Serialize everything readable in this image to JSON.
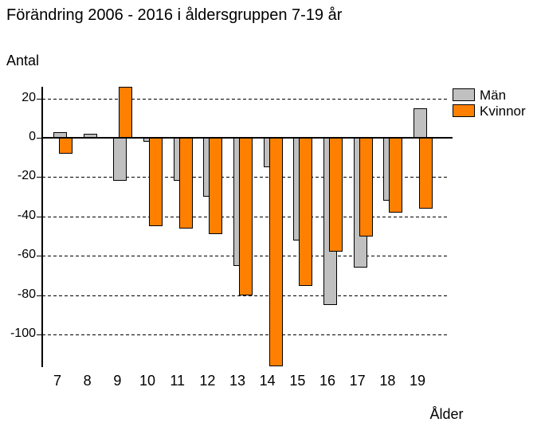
{
  "chart_data": {
    "type": "bar",
    "title": "Förändring 2006 - 2016 i åldersgruppen 7-19 år",
    "xlabel": "Ålder",
    "ylabel": "Antal",
    "categories": [
      "7",
      "8",
      "9",
      "10",
      "11",
      "12",
      "13",
      "14",
      "15",
      "16",
      "17",
      "18",
      "19"
    ],
    "series": [
      {
        "name": "Män",
        "color": "#C0C0C0",
        "values": [
          3,
          2,
          -22,
          -2,
          -22,
          -30,
          -65,
          -15,
          -52,
          -85,
          -66,
          -32,
          15
        ]
      },
      {
        "name": "Kvinnor",
        "color": "#FF8000",
        "values": [
          -8,
          0,
          26,
          -45,
          -46,
          -49,
          -80,
          -116,
          -75,
          -58,
          -50,
          -38,
          -36
        ]
      }
    ],
    "ylim": [
      -116,
      26
    ],
    "yticks": [
      20,
      0,
      -20,
      -40,
      -60,
      -80,
      -100
    ],
    "grid": "horizontal-dashed",
    "legend_position": "top-right",
    "bar_style": "overlapping-pairs, black 1px outlines"
  },
  "colors": {
    "background": "#FFFFFF",
    "axis": "#000000",
    "men_fill": "#C0C0C0",
    "women_fill": "#FF8000"
  }
}
